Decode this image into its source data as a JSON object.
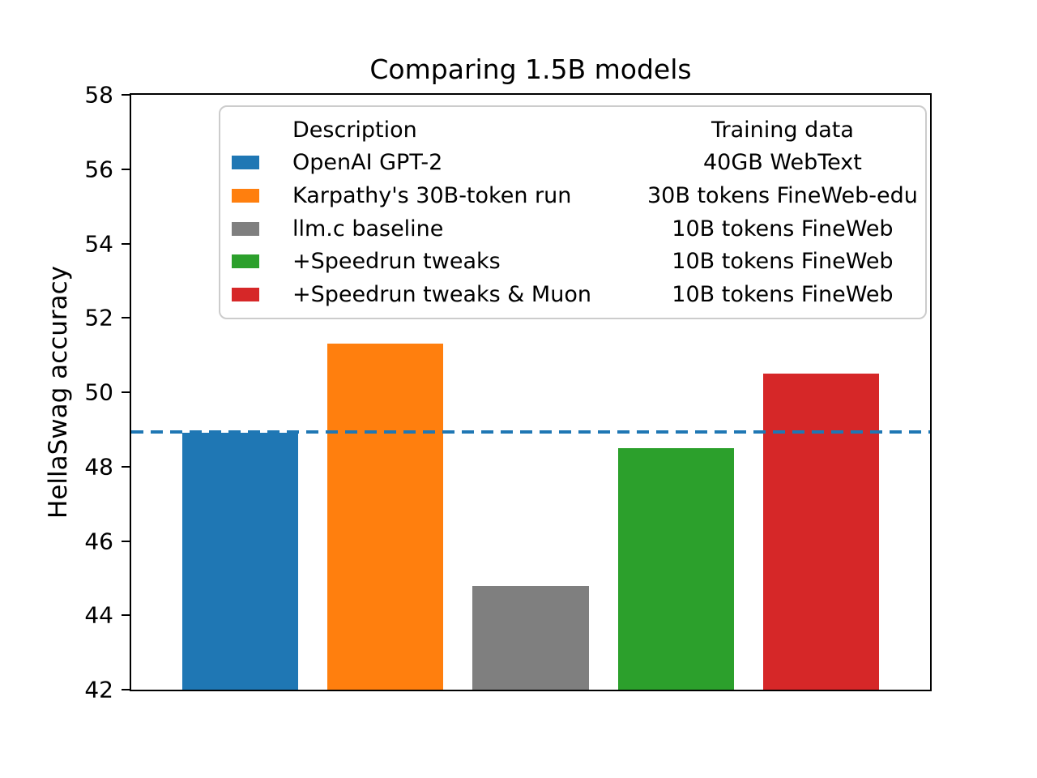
{
  "title": "Comparing 1.5B models",
  "chart_data": {
    "type": "bar",
    "title": "Comparing 1.5B models",
    "xlabel": "",
    "ylabel": "HellaSwag accuracy",
    "ylim": [
      42,
      58
    ],
    "yticks": [
      42,
      44,
      46,
      48,
      50,
      52,
      54,
      56,
      58
    ],
    "grid": false,
    "categories": [
      "OpenAI GPT-2",
      "Karpathy's 30B-token run",
      "llm.c baseline",
      "+Speedrun tweaks",
      "+Speedrun tweaks & Muon"
    ],
    "values": [
      48.9,
      51.3,
      44.8,
      48.5,
      50.5
    ],
    "bar_colors": [
      "#1f77b4",
      "#ff7f0e",
      "#7f7f7f",
      "#2ca02c",
      "#d62728"
    ],
    "reference_line": {
      "value": 48.93,
      "style": "dashed",
      "color": "#1f77b4"
    },
    "legend": {
      "position": "upper center",
      "columns": [
        "Description",
        "Training data"
      ],
      "entries": [
        {
          "color": "#1f77b4",
          "description": "OpenAI GPT-2",
          "training_data": "40GB WebText"
        },
        {
          "color": "#ff7f0e",
          "description": "Karpathy's 30B-token run",
          "training_data": "30B tokens FineWeb-edu"
        },
        {
          "color": "#7f7f7f",
          "description": "llm.c baseline",
          "training_data": "10B tokens FineWeb"
        },
        {
          "color": "#2ca02c",
          "description": "+Speedrun tweaks",
          "training_data": "10B tokens FineWeb"
        },
        {
          "color": "#d62728",
          "description": "+Speedrun tweaks & Muon",
          "training_data": "10B tokens FineWeb"
        }
      ]
    }
  }
}
